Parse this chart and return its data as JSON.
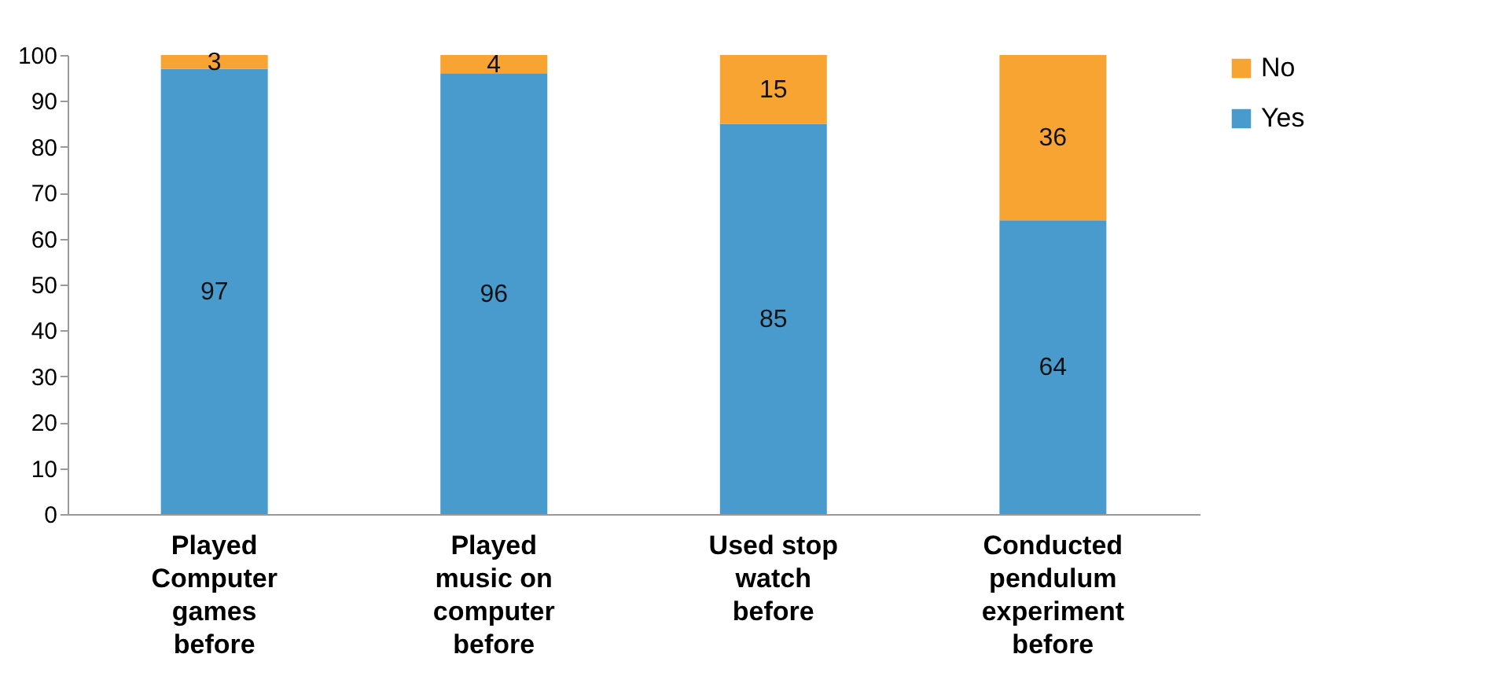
{
  "chart_data": {
    "type": "bar",
    "stacked": true,
    "categories": [
      "Played Computer games before",
      "Played music on computer before",
      "Used stop watch before",
      "Conducted pendulum experiment before"
    ],
    "series": [
      {
        "name": "Yes",
        "color": "#4a9bcd",
        "values": [
          97,
          96,
          85,
          64
        ]
      },
      {
        "name": "No",
        "color": "#f8a433",
        "values": [
          3,
          4,
          15,
          36
        ]
      }
    ],
    "ylim": [
      0,
      100
    ],
    "yticks": [
      0,
      10,
      20,
      30,
      40,
      50,
      60,
      70,
      80,
      90,
      100
    ],
    "data_labels": true,
    "legend": "right",
    "grid": false
  }
}
